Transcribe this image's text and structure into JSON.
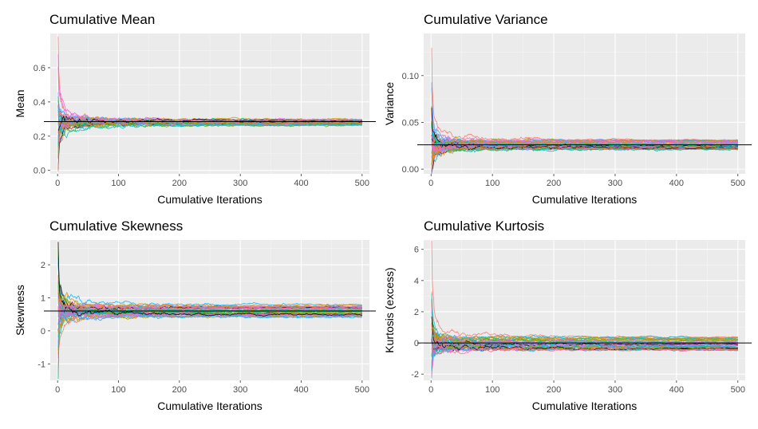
{
  "colors": {
    "panel_bg": "#EBEBEB",
    "grid_major": "#FFFFFF",
    "reference_line": "#000000",
    "palette": [
      "#F8766D",
      "#E58700",
      "#C99800",
      "#A3A500",
      "#6BB100",
      "#00BA38",
      "#00BF7D",
      "#00C0AF",
      "#00BCD8",
      "#00B0F6",
      "#619CFF",
      "#B983FF",
      "#E76BF3",
      "#FD61D1",
      "#FF67A4",
      "#000000"
    ]
  },
  "chart_data": [
    {
      "type": "line",
      "title": "Cumulative Mean",
      "xlabel": "Cumulative Iterations",
      "ylabel": "Mean",
      "xlim": [
        -12,
        512
      ],
      "ylim": [
        -0.02,
        0.8
      ],
      "x_ticks": [
        0,
        100,
        200,
        300,
        400,
        500
      ],
      "y_ticks": [
        0.0,
        0.2,
        0.4,
        0.6
      ],
      "y_tick_labels": [
        "0.0",
        "0.2",
        "0.4",
        "0.6"
      ],
      "reference_value": 0.285,
      "grid": true,
      "series_count": 50,
      "series_summary": {
        "start_min": 0.03,
        "start_max": 0.76,
        "final_min": 0.265,
        "final_max": 0.3
      }
    },
    {
      "type": "line",
      "title": "Cumulative Variance",
      "xlabel": "Cumulative Iterations",
      "ylabel": "Variance",
      "xlim": [
        -12,
        512
      ],
      "ylim": [
        -0.005,
        0.145
      ],
      "x_ticks": [
        0,
        100,
        200,
        300,
        400,
        500
      ],
      "y_ticks": [
        0.0,
        0.05,
        0.1
      ],
      "y_tick_labels": [
        "0.00",
        "0.05",
        "0.10"
      ],
      "reference_value": 0.026,
      "grid": true,
      "series_count": 50,
      "series_summary": {
        "start_min": 0.0,
        "start_max": 0.137,
        "final_min": 0.021,
        "final_max": 0.031
      }
    },
    {
      "type": "line",
      "title": "Cumulative Skewness",
      "xlabel": "Cumulative Iterations",
      "ylabel": "Skewness",
      "xlim": [
        -12,
        512
      ],
      "ylim": [
        -1.5,
        2.75
      ],
      "x_ticks": [
        0,
        100,
        200,
        300,
        400,
        500
      ],
      "y_ticks": [
        -1,
        0,
        1,
        2
      ],
      "y_tick_labels": [
        "-1",
        "0",
        "1",
        "2"
      ],
      "reference_value": 0.6,
      "grid": true,
      "series_count": 50,
      "series_summary": {
        "start_min": -1.4,
        "start_max": 2.65,
        "final_min": 0.42,
        "final_max": 0.78
      }
    },
    {
      "type": "line",
      "title": "Cumulative Kurtosis",
      "xlabel": "Cumulative Iterations",
      "ylabel": "Kurtosis (excess)",
      "xlim": [
        -12,
        512
      ],
      "ylim": [
        -2.4,
        6.6
      ],
      "x_ticks": [
        0,
        100,
        200,
        300,
        400,
        500
      ],
      "y_ticks": [
        -2,
        0,
        2,
        4,
        6
      ],
      "y_tick_labels": [
        "-2",
        "0",
        "2",
        "4",
        "6"
      ],
      "reference_value": 0.0,
      "grid": true,
      "series_count": 50,
      "series_summary": {
        "start_min": -1.9,
        "start_max": 6.1,
        "final_min": -0.5,
        "final_max": 0.35
      }
    }
  ]
}
